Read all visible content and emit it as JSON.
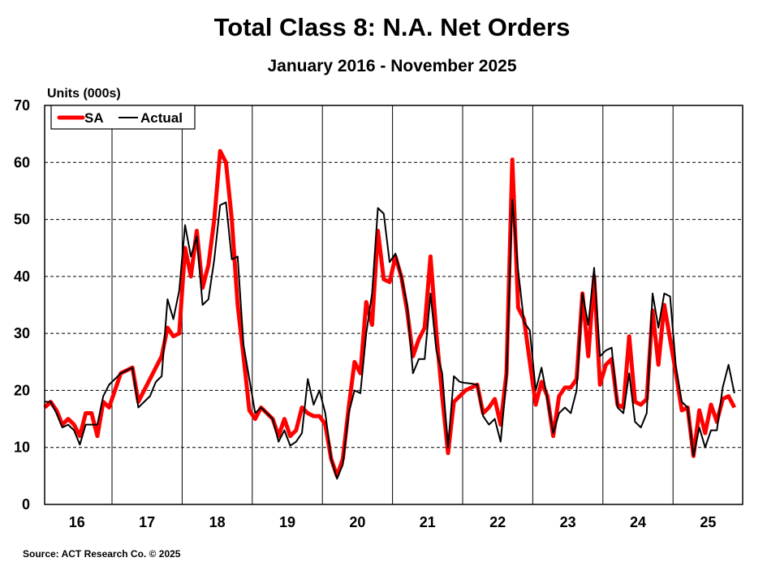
{
  "chart_data": {
    "type": "line",
    "title": "Total Class 8: N.A. Net Orders",
    "subtitle": "January 2016 - November 2025",
    "ylabel": "Units (000s)",
    "xlabel": "",
    "ylim": [
      0,
      70
    ],
    "yticks": [
      0,
      10,
      20,
      30,
      40,
      50,
      60,
      70
    ],
    "xtick_labels": [
      "16",
      "17",
      "18",
      "19",
      "20",
      "21",
      "22",
      "23",
      "24",
      "25"
    ],
    "x_start": "2016-01",
    "x_end": "2025-11",
    "frequency": "monthly",
    "grid": "horizontal dashed, vertical solid at year boundaries",
    "legend_position": "top-left",
    "series": [
      {
        "name": "SA",
        "color": "#ff0000",
        "values": [
          17,
          18,
          16.5,
          14,
          15,
          14,
          12,
          16,
          16,
          12,
          18,
          17,
          20,
          23,
          23.5,
          24,
          18,
          20,
          22,
          24,
          26,
          31,
          29.5,
          30,
          45,
          40,
          48,
          38,
          42,
          50,
          62,
          60,
          50,
          35,
          26,
          16.5,
          15,
          17,
          16,
          15,
          12,
          15,
          12,
          13,
          17,
          16,
          15.5,
          15.5,
          14,
          8,
          5,
          8,
          17,
          25,
          23,
          35.5,
          31.5,
          48,
          39.5,
          39,
          43.5,
          40,
          34,
          26,
          29,
          31,
          43.5,
          30,
          19,
          9,
          18,
          19,
          20,
          20.5,
          21,
          16,
          17,
          18.5,
          14,
          23,
          60.5,
          34.5,
          32.5,
          25,
          17.5,
          21.5,
          19,
          12,
          19,
          20.5,
          20.5,
          22,
          37,
          26,
          40,
          21,
          24.5,
          25.5,
          17.5,
          17,
          29.5,
          18,
          17.5,
          18.5,
          34,
          24.5,
          35,
          29,
          23,
          16.5,
          17,
          8.5,
          16.5,
          12.5,
          17.5,
          14.5,
          18.5,
          19,
          17
        ]
      },
      {
        "name": "Actual",
        "color": "#000000",
        "values": [
          18,
          18,
          16,
          13.5,
          14,
          13,
          10.5,
          14,
          14,
          14,
          19,
          21,
          22,
          23,
          23.5,
          24,
          17,
          18,
          19,
          21.5,
          22.5,
          36,
          32.5,
          37.5,
          49,
          43.5,
          47,
          35,
          36,
          43,
          52.5,
          53,
          43,
          43.5,
          28,
          22,
          16,
          17,
          16,
          15,
          11,
          13,
          10.3,
          11,
          12.5,
          22,
          17.5,
          20,
          16,
          8,
          4.5,
          7,
          16,
          20,
          19.5,
          30,
          37,
          52,
          51,
          42.5,
          44,
          40,
          35,
          23,
          25.5,
          25.5,
          37,
          27,
          23,
          10,
          22.5,
          21.5,
          21.3,
          21.2,
          21,
          15.5,
          14,
          15,
          11,
          22,
          53.5,
          41,
          32,
          30.5,
          20,
          24,
          18.5,
          12.5,
          16,
          17,
          16,
          20,
          37,
          31.5,
          41.5,
          26,
          27,
          27.5,
          17,
          16,
          23,
          14.5,
          13.5,
          16,
          37,
          31,
          37,
          36.5,
          24,
          18,
          17,
          8.5,
          13.5,
          10,
          13,
          13,
          20.5,
          24.5,
          19.5
        ]
      }
    ],
    "source": "Source: ACT Research Co. © 2025"
  }
}
